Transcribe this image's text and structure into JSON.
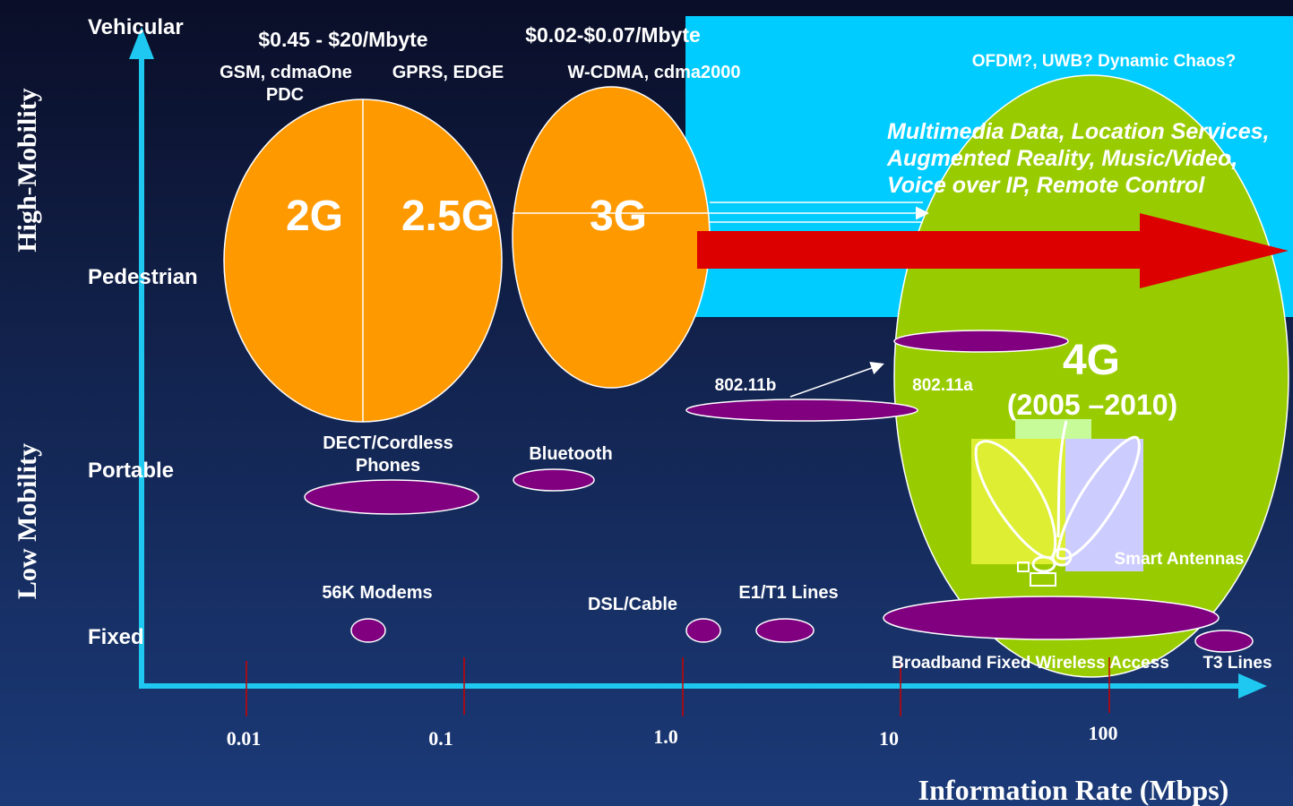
{
  "axes": {
    "y_top_label": "High-Mobility",
    "y_bottom_label": "Low Mobility",
    "x_label": "Information Rate (Mbps)",
    "x_ticks": [
      "0.01",
      "0.1",
      "1.0",
      "10",
      "100"
    ],
    "y_levels": [
      "Vehicular",
      "Pedestrian",
      "Portable",
      "Fixed"
    ]
  },
  "pricing": {
    "gen2": "$0.45 - $20/Mbyte",
    "gen3": "$0.02-$0.07/Mbyte"
  },
  "technologies": {
    "gsm": "GSM, cdmaOne",
    "pdc": "PDC",
    "gprs": "GPRS, EDGE",
    "wcdma": "W-CDMA, cdma2000",
    "future": "OFDM?, UWB? Dynamic Chaos?"
  },
  "services": [
    "Multimedia Data, Location Services,",
    "Augmented Reality, Music/Video,",
    "Voice over IP, Remote Control"
  ],
  "generations": {
    "g2": "2G",
    "g25": "2.5G",
    "g3": "3G",
    "g4": "4G",
    "g4_years": "(2005 –2010)"
  },
  "systems": {
    "wifi_b": "802.11b",
    "wifi_a": "802.11a",
    "dect_line1": "DECT/Cordless",
    "dect_line2": "Phones",
    "bluetooth": "Bluetooth",
    "smart_antennas": "Smart Antennas",
    "modems": "56K Modems",
    "dsl": "DSL/Cable",
    "e1t1": "E1/T1 Lines",
    "bfwa": "Broadband Fixed Wireless Access",
    "t3": "T3 Lines"
  },
  "colors": {
    "axis": "#1ec8f0",
    "cyan_region": "#00ccff",
    "orange": "#ff9900",
    "green": "#99cc00",
    "purple": "#800080",
    "arrow_red": "#dd0000",
    "tick_red": "#cc0000"
  }
}
